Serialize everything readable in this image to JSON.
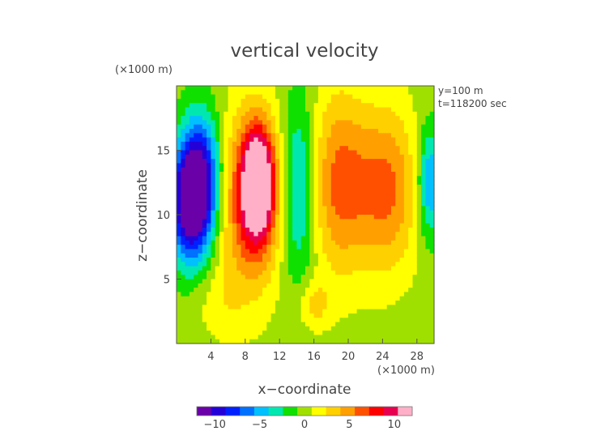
{
  "chart_data": {
    "type": "heatmap",
    "title": "vertical velocity",
    "xlabel": "x−coordinate",
    "ylabel": "z−coordinate",
    "x_unit": "(×1000 m)",
    "y_unit": "(×1000 m)",
    "xlim": [
      0,
      30
    ],
    "ylim": [
      0,
      20
    ],
    "x_ticks": [
      "4",
      "8",
      "12",
      "16",
      "20",
      "24",
      "28"
    ],
    "y_ticks": [
      "5",
      "10",
      "15"
    ],
    "annotations": [
      "y=100 m",
      "t=118200 sec"
    ],
    "colorbar": {
      "range": [
        -12,
        12
      ],
      "ticks": [
        "−10",
        "−5",
        "0",
        "5",
        "10"
      ],
      "colors": [
        "#6a00a8",
        "#2400d8",
        "#0020ff",
        "#0070ff",
        "#00c0ff",
        "#00e8b0",
        "#10e000",
        "#a0e000",
        "#ffff00",
        "#ffd000",
        "#ffa000",
        "#ff5000",
        "#ff0000",
        "#e80050",
        "#ffb0c8"
      ]
    },
    "field_features": [
      {
        "kind": "downdraft",
        "x": 1.5,
        "z": 11.0,
        "value": -12,
        "sx": 1.6,
        "sz": 3.2
      },
      {
        "kind": "downdraft",
        "x": 3.0,
        "z": 13.0,
        "value": -8,
        "sx": 1.6,
        "sz": 3.5
      },
      {
        "kind": "updraft",
        "x": 9.5,
        "z": 12.5,
        "value": 12,
        "sx": 1.3,
        "sz": 3.0
      },
      {
        "kind": "updraft",
        "x": 8.5,
        "z": 11.0,
        "value": 7,
        "sx": 2.5,
        "sz": 5.0
      },
      {
        "kind": "downdraft",
        "x": 14.2,
        "z": 12.0,
        "value": -5,
        "sx": 1.3,
        "sz": 5.0
      },
      {
        "kind": "updraft",
        "x": 19.0,
        "z": 12.5,
        "value": 6,
        "sx": 2.3,
        "sz": 5.0
      },
      {
        "kind": "updraft",
        "x": 24.5,
        "z": 12.0,
        "value": 6,
        "sx": 2.5,
        "sz": 4.5
      },
      {
        "kind": "downdraft",
        "x": 29.5,
        "z": 12.5,
        "value": -6,
        "sx": 1.0,
        "sz": 3.0
      },
      {
        "kind": "updraft",
        "x": 16.0,
        "z": 3.0,
        "value": 3,
        "sx": 1.3,
        "sz": 1.3
      },
      {
        "kind": "updraft",
        "x": 5.0,
        "z": 3.0,
        "value": 1.5,
        "sx": 2.0,
        "sz": 2.0
      }
    ]
  }
}
